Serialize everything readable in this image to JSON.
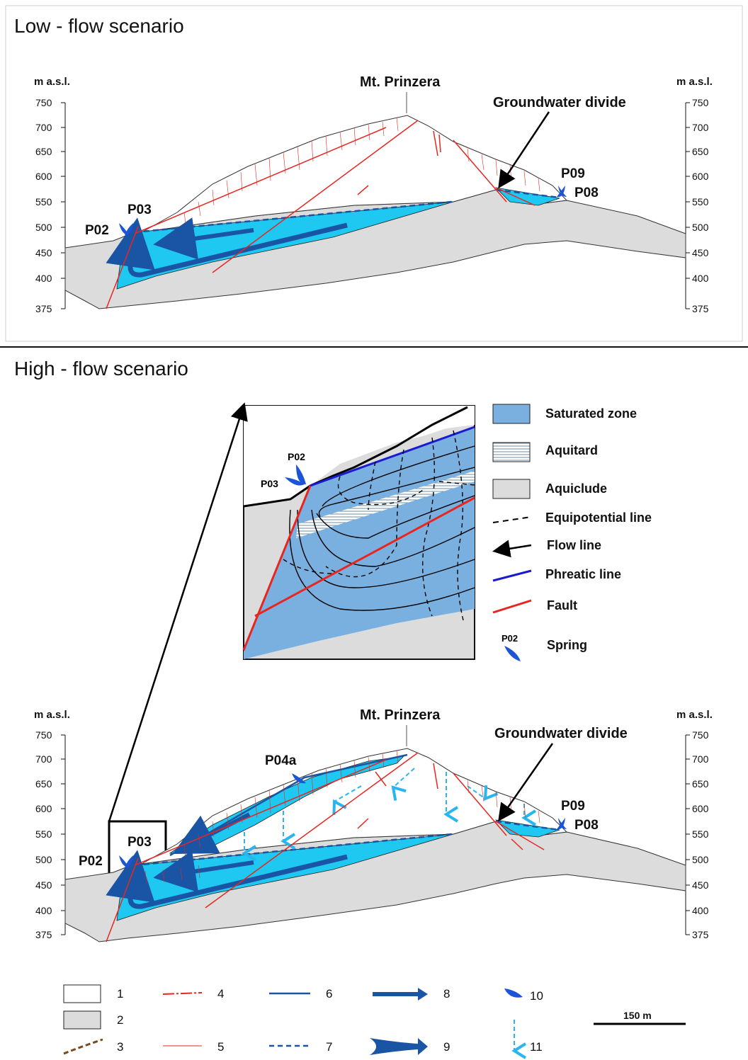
{
  "low": {
    "title": "Low - flow scenario",
    "unit_left": "m a.s.l.",
    "unit_right": "m a.s.l.",
    "peak": "Mt. Prinzera",
    "divide": "Groundwater divide",
    "springs": [
      "P02",
      "P03",
      "P09",
      "P08"
    ]
  },
  "high": {
    "title": "High - flow scenario",
    "unit_left": "m a.s.l.",
    "unit_right": "m a.s.l.",
    "peak": "Mt. Prinzera",
    "divide": "Groundwater divide",
    "springs": [
      "P02",
      "P03",
      "P04a",
      "P09",
      "P08"
    ]
  },
  "axis_ticks": [
    "750",
    "700",
    "650",
    "600",
    "550",
    "500",
    "450",
    "400",
    "375"
  ],
  "inset": {
    "springs": [
      "P02",
      "P03"
    ]
  },
  "inset_legend": [
    "Saturated zone",
    "Aquitard",
    "Aquiclude",
    "Equipotential line",
    "Flow line",
    "Phreatic line",
    "Fault",
    "Spring"
  ],
  "inset_legend_spring_label": "P02",
  "numbered_legend": [
    "1",
    "2",
    "3",
    "4",
    "5",
    "6",
    "7",
    "8",
    "9",
    "10",
    "11"
  ],
  "scale_bar": "150 m",
  "colors": {
    "aquifer": "#1ec8f0",
    "aquiclude": "#dcdcdc",
    "fault": "#e8261f",
    "flow_arrow": "#1a55a5",
    "spring": "#1b54d6",
    "saturated_zone": "#7ab0e0",
    "phreatic_line": "#1a1ad0"
  }
}
